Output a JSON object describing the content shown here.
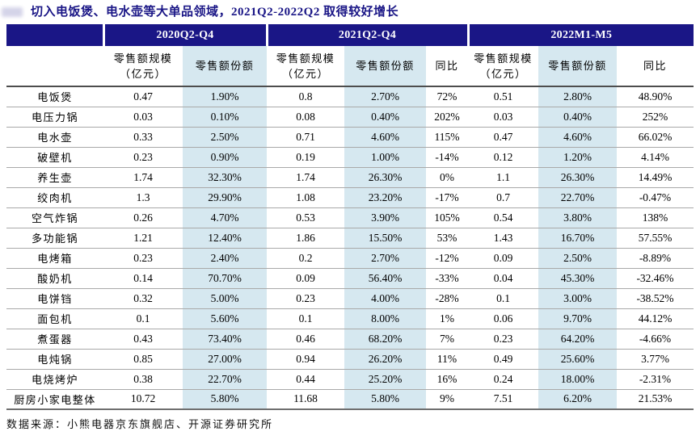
{
  "title": "切入电饭煲、电水壶等大单品领域，2021Q2-2022Q2 取得较好增长",
  "source": "数据来源：小熊电器京东旗舰店、开源证券研究所",
  "colors": {
    "header_navy": "#1a1686",
    "share_column_blue": "#d6e8f0",
    "title_navy": "#1a1686"
  },
  "header": {
    "scale_line1": "零售额规模",
    "scale_line2": "（亿元）",
    "share": "零售额份额",
    "yoy": "同比"
  },
  "chart_data": {
    "type": "table",
    "title": "切入电饭煲、电水壶等大单品领域，2021Q2-2022Q2 取得较好增长",
    "column_groups": [
      "2020Q2-Q4",
      "2021Q2-Q4",
      "2022M1-M5"
    ],
    "columns": [
      "",
      "2020Q2-Q4 零售额规模（亿元）",
      "2020Q2-Q4 零售额份额",
      "2021Q2-Q4 零售额规模（亿元）",
      "2021Q2-Q4 零售额份额",
      "2021Q2-Q4 同比",
      "2022M1-M5 零售额规模（亿元）",
      "2022M1-M5 零售额份额",
      "2022M1-M5 同比"
    ],
    "rows": [
      {
        "name": "电饭煲",
        "values": [
          "0.47",
          "1.90%",
          "0.8",
          "2.70%",
          "72%",
          "0.51",
          "2.80%",
          "48.90%"
        ]
      },
      {
        "name": "电压力锅",
        "values": [
          "0.03",
          "0.10%",
          "0.08",
          "0.40%",
          "202%",
          "0.03",
          "0.40%",
          "252%"
        ]
      },
      {
        "name": "电水壶",
        "values": [
          "0.33",
          "2.50%",
          "0.71",
          "4.60%",
          "115%",
          "0.47",
          "4.60%",
          "66.02%"
        ]
      },
      {
        "name": "破壁机",
        "values": [
          "0.23",
          "0.90%",
          "0.19",
          "1.00%",
          "-14%",
          "0.12",
          "1.20%",
          "4.14%"
        ]
      },
      {
        "name": "养生壶",
        "values": [
          "1.74",
          "32.30%",
          "1.74",
          "26.30%",
          "0%",
          "1.1",
          "26.30%",
          "14.49%"
        ]
      },
      {
        "name": "绞肉机",
        "values": [
          "1.3",
          "29.90%",
          "1.08",
          "23.20%",
          "-17%",
          "0.7",
          "22.70%",
          "-0.47%"
        ]
      },
      {
        "name": "空气炸锅",
        "values": [
          "0.26",
          "4.70%",
          "0.53",
          "3.90%",
          "105%",
          "0.54",
          "3.80%",
          "138%"
        ]
      },
      {
        "name": "多功能锅",
        "values": [
          "1.21",
          "12.40%",
          "1.86",
          "15.50%",
          "53%",
          "1.43",
          "16.70%",
          "57.55%"
        ]
      },
      {
        "name": "电烤箱",
        "values": [
          "0.23",
          "2.40%",
          "0.2",
          "2.70%",
          "-12%",
          "0.09",
          "2.50%",
          "-8.89%"
        ]
      },
      {
        "name": "酸奶机",
        "values": [
          "0.14",
          "70.70%",
          "0.09",
          "56.40%",
          "-33%",
          "0.04",
          "45.30%",
          "-32.46%"
        ]
      },
      {
        "name": "电饼铛",
        "values": [
          "0.32",
          "5.00%",
          "0.23",
          "4.00%",
          "-28%",
          "0.1",
          "3.00%",
          "-38.52%"
        ]
      },
      {
        "name": "面包机",
        "values": [
          "0.1",
          "5.60%",
          "0.1",
          "8.00%",
          "1%",
          "0.06",
          "9.70%",
          "44.12%"
        ]
      },
      {
        "name": "煮蛋器",
        "values": [
          "0.43",
          "73.40%",
          "0.46",
          "68.20%",
          "7%",
          "0.23",
          "64.20%",
          "-4.66%"
        ]
      },
      {
        "name": "电炖锅",
        "values": [
          "0.85",
          "27.00%",
          "0.94",
          "26.20%",
          "11%",
          "0.49",
          "25.60%",
          "3.77%"
        ]
      },
      {
        "name": "电烧烤炉",
        "values": [
          "0.38",
          "22.70%",
          "0.44",
          "25.20%",
          "16%",
          "0.24",
          "18.00%",
          "-2.31%"
        ]
      },
      {
        "name": "厨房小家电整体",
        "values": [
          "10.72",
          "5.80%",
          "11.68",
          "5.80%",
          "9%",
          "7.51",
          "6.20%",
          "21.53%"
        ]
      }
    ],
    "source": "数据来源：小熊电器京东旗舰店、开源证券研究所"
  }
}
